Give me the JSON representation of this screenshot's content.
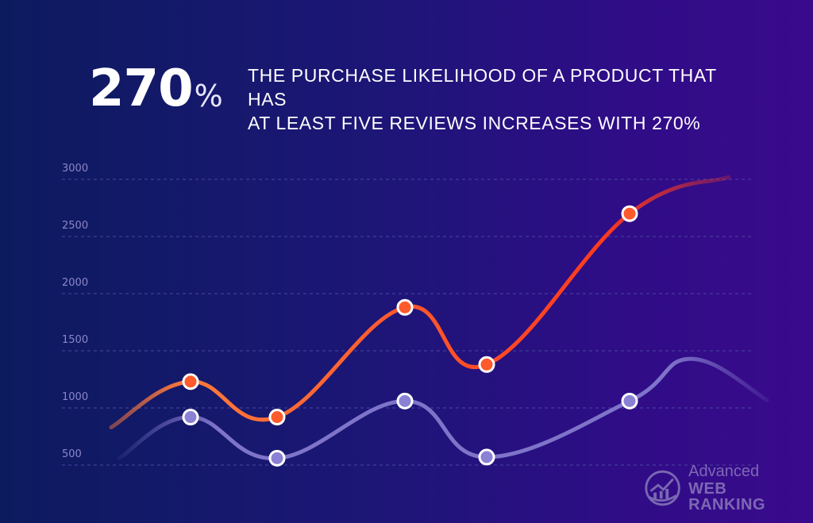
{
  "headline": {
    "number": "270",
    "unit": "%",
    "text_line1": "THE PURCHASE LIKELIHOOD OF A PRODUCT THAT HAS",
    "text_line2": "AT LEAST FIVE REVIEWS INCREASES WITH 270%"
  },
  "brand": {
    "line1": "Advanced",
    "line2": "WEB RANKING",
    "icon": "globe-chart-icon"
  },
  "colors": {
    "background_left": "#0c1b5e",
    "background_right": "#3a0a8c",
    "series_high_start": "#ff7a3c",
    "series_high_end": "#ff3a1e",
    "series_low": "#7e74c9",
    "grid": "#4a46a0",
    "tick": "#8d86c9"
  },
  "chart_data": {
    "type": "line",
    "yticks": [
      500,
      1000,
      1500,
      2000,
      2500,
      3000
    ],
    "ylim": [
      300,
      3150
    ],
    "grid": "dashed horizontal",
    "series": [
      {
        "key": "high",
        "points": [
          1230,
          920,
          1880,
          1380,
          2700
        ],
        "start": 830,
        "end": 3020
      },
      {
        "key": "low",
        "points": [
          920,
          560,
          1060,
          570,
          1060
        ],
        "start": 560,
        "end": 1070
      }
    ]
  }
}
